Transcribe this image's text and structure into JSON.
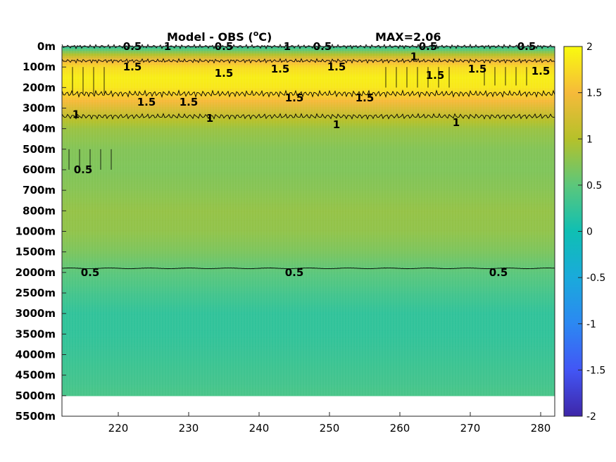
{
  "chart_data": {
    "type": "heatmap",
    "title": "Model - OBS (",
    "title_superscript": "o",
    "title_suffix": "C)",
    "max_label": "MAX=2.06",
    "x_ticks": [
      220,
      230,
      240,
      250,
      260,
      270,
      280
    ],
    "x_range": [
      212,
      282
    ],
    "y_tick_labels": [
      "0m",
      "100m",
      "200m",
      "300m",
      "400m",
      "500m",
      "600m",
      "700m",
      "800m",
      "1000m",
      "1500m",
      "2000m",
      "2500m",
      "3000m",
      "3500m",
      "4000m",
      "4500m",
      "5000m",
      "5500m"
    ],
    "y_levels_m": [
      0,
      100,
      200,
      300,
      400,
      500,
      600,
      700,
      800,
      1000,
      1500,
      2000,
      2500,
      3000,
      3500,
      4000,
      4500,
      5000,
      5500
    ],
    "data_bottom_m": 5000,
    "colorbar": {
      "ticks": [
        2,
        1.5,
        1,
        0.5,
        0,
        -0.5,
        -1,
        -1.5,
        -2
      ],
      "tick_labels": [
        "2",
        "1.5",
        "1",
        "0.5",
        "0",
        "-0.5",
        "-1",
        "-1.5",
        "-2"
      ],
      "range": [
        -2,
        2
      ],
      "colormap": "parula"
    },
    "depth_profile": {
      "depth_m": [
        0,
        30,
        60,
        100,
        150,
        200,
        250,
        300,
        350,
        400,
        500,
        600,
        700,
        800,
        1000,
        1500,
        2000,
        2500,
        3000,
        3500,
        4000,
        4500,
        5000
      ],
      "value": [
        0.2,
        0.8,
        1.35,
        1.75,
        1.9,
        1.85,
        1.6,
        1.3,
        1.05,
        0.85,
        0.72,
        0.7,
        0.75,
        0.82,
        0.8,
        0.68,
        0.5,
        0.35,
        0.22,
        0.22,
        0.27,
        0.32,
        0.38
      ]
    },
    "contours": [
      {
        "level": "0.5",
        "label_positions": [
          [
            222,
            0
          ],
          [
            235,
            0
          ],
          [
            249,
            0
          ],
          [
            264,
            0
          ],
          [
            278,
            0
          ],
          [
            215,
            600
          ],
          [
            216,
            2000
          ],
          [
            245,
            2000
          ],
          [
            274,
            2000
          ]
        ]
      },
      {
        "level": "1",
        "label_positions": [
          [
            227,
            0
          ],
          [
            244,
            0
          ],
          [
            262,
            50
          ],
          [
            214,
            330
          ],
          [
            233,
            350
          ],
          [
            251,
            380
          ],
          [
            268,
            370
          ]
        ]
      },
      {
        "level": "1.5",
        "label_positions": [
          [
            222,
            100
          ],
          [
            235,
            130
          ],
          [
            243,
            110
          ],
          [
            251,
            100
          ],
          [
            265,
            140
          ],
          [
            271,
            110
          ],
          [
            280,
            120
          ],
          [
            224,
            270
          ],
          [
            245,
            250
          ],
          [
            255,
            250
          ],
          [
            230,
            270
          ]
        ]
      }
    ],
    "labels_printed": {
      "c05": "0.5",
      "c1": "1",
      "c15": "1.5"
    }
  }
}
